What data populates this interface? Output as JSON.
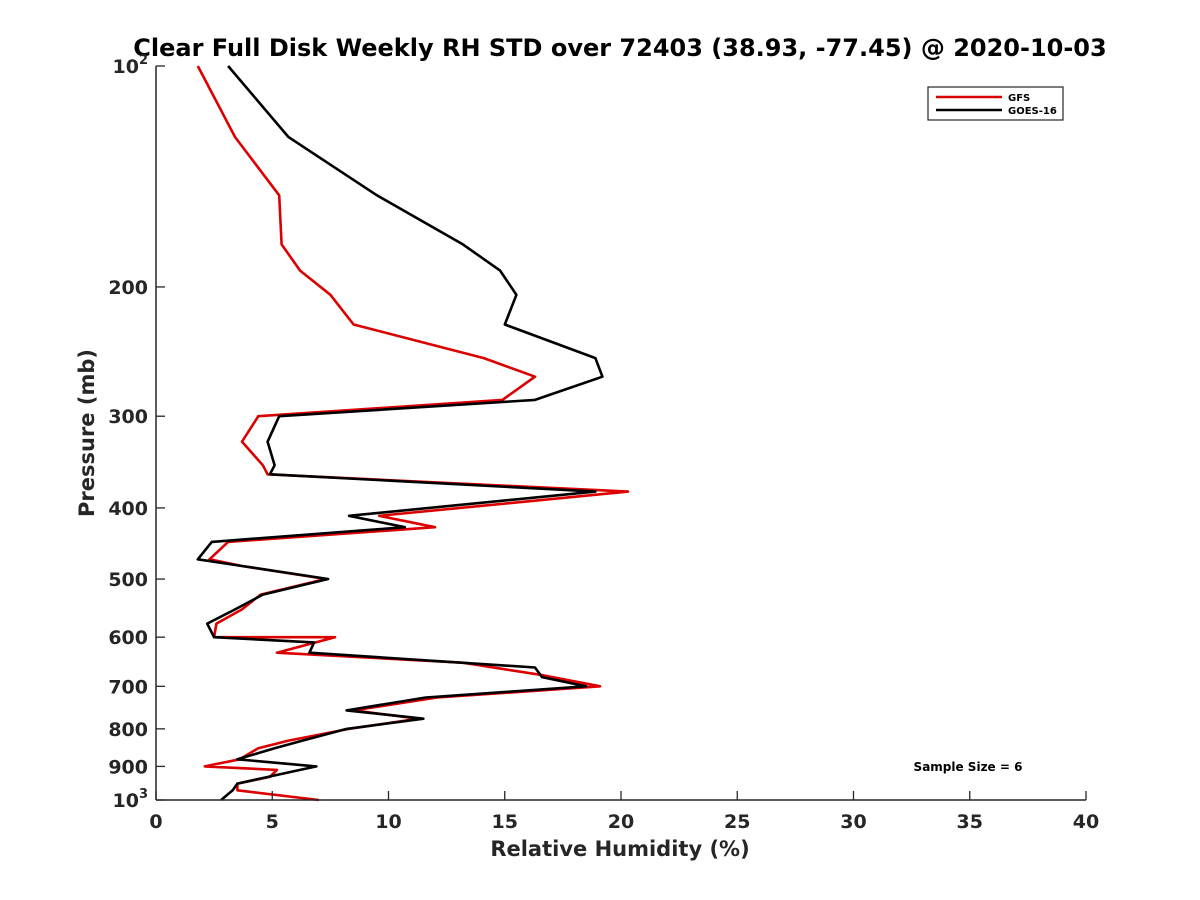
{
  "chart_data": {
    "type": "line",
    "title": "Clear Full Disk Weekly RH STD over 72403 (38.93, -77.45) @ 2020-10-03",
    "xlabel": "Relative Humidity (%)",
    "ylabel": "Pressure (mb)",
    "xlim": [
      0,
      40
    ],
    "ylim": [
      100,
      1000
    ],
    "y_scale": "log",
    "y_reversed": true,
    "grid": false,
    "legend_position": "top-right",
    "x_ticks": [
      0,
      5,
      10,
      15,
      20,
      25,
      30,
      35,
      40
    ],
    "x_tick_labels": [
      "0",
      "5",
      "10",
      "15",
      "20",
      "25",
      "30",
      "35",
      "40"
    ],
    "y_ticks": [
      200,
      300,
      400,
      500,
      600,
      700,
      800,
      900
    ],
    "y_tick_labels": [
      "200",
      "300",
      "400",
      "500",
      "600",
      "700",
      "800",
      "900"
    ],
    "y_extreme_ticks": [
      {
        "value": 100,
        "base": "10",
        "exp": "2"
      },
      {
        "value": 1000,
        "base": "10",
        "exp": "3"
      }
    ],
    "annotations": [
      "Sample Size = 6"
    ],
    "series": [
      {
        "name": "GFS",
        "color": "#dd0000",
        "points": [
          [
            1.8,
            100
          ],
          [
            3.4,
            125
          ],
          [
            5.3,
            150
          ],
          [
            5.4,
            175
          ],
          [
            6.2,
            190
          ],
          [
            7.5,
            205
          ],
          [
            8.5,
            225
          ],
          [
            14.1,
            250
          ],
          [
            16.3,
            265
          ],
          [
            14.9,
            285
          ],
          [
            4.4,
            300
          ],
          [
            3.7,
            325
          ],
          [
            4.6,
            350
          ],
          [
            4.8,
            360
          ],
          [
            20.3,
            380
          ],
          [
            9.6,
            410
          ],
          [
            12.0,
            425
          ],
          [
            3.1,
            445
          ],
          [
            2.3,
            470
          ],
          [
            3.7,
            480
          ],
          [
            7.3,
            500
          ],
          [
            4.5,
            525
          ],
          [
            3.7,
            550
          ],
          [
            2.6,
            575
          ],
          [
            2.5,
            600
          ],
          [
            7.7,
            600
          ],
          [
            5.2,
            630
          ],
          [
            13.2,
            650
          ],
          [
            16.5,
            675
          ],
          [
            19.1,
            700
          ],
          [
            12.1,
            725
          ],
          [
            8.5,
            755
          ],
          [
            11.3,
            775
          ],
          [
            8.3,
            800
          ],
          [
            5.7,
            830
          ],
          [
            4.4,
            850
          ],
          [
            3.6,
            880
          ],
          [
            2.1,
            900
          ],
          [
            5.2,
            910
          ],
          [
            4.9,
            930
          ],
          [
            3.5,
            950
          ],
          [
            3.5,
            970
          ],
          [
            7.0,
            1000
          ]
        ]
      },
      {
        "name": "GOES-16",
        "color": "#000000",
        "points": [
          [
            3.1,
            100
          ],
          [
            5.7,
            125
          ],
          [
            9.5,
            150
          ],
          [
            13.2,
            175
          ],
          [
            14.8,
            190
          ],
          [
            15.5,
            205
          ],
          [
            15.0,
            225
          ],
          [
            18.9,
            250
          ],
          [
            19.2,
            265
          ],
          [
            16.3,
            285
          ],
          [
            5.3,
            300
          ],
          [
            4.8,
            325
          ],
          [
            5.1,
            350
          ],
          [
            4.9,
            360
          ],
          [
            18.9,
            380
          ],
          [
            8.3,
            410
          ],
          [
            10.7,
            425
          ],
          [
            2.4,
            445
          ],
          [
            1.8,
            470
          ],
          [
            3.7,
            480
          ],
          [
            7.4,
            500
          ],
          [
            4.6,
            525
          ],
          [
            3.4,
            550
          ],
          [
            2.2,
            575
          ],
          [
            2.5,
            600
          ],
          [
            6.8,
            610
          ],
          [
            6.6,
            630
          ],
          [
            16.3,
            660
          ],
          [
            16.6,
            680
          ],
          [
            18.5,
            700
          ],
          [
            11.6,
            725
          ],
          [
            8.2,
            755
          ],
          [
            11.5,
            775
          ],
          [
            8.2,
            800
          ],
          [
            6.3,
            830
          ],
          [
            5.1,
            850
          ],
          [
            3.5,
            880
          ],
          [
            6.9,
            900
          ],
          [
            6.2,
            910
          ],
          [
            3.5,
            950
          ],
          [
            3.3,
            970
          ],
          [
            2.8,
            1000
          ]
        ]
      }
    ]
  }
}
